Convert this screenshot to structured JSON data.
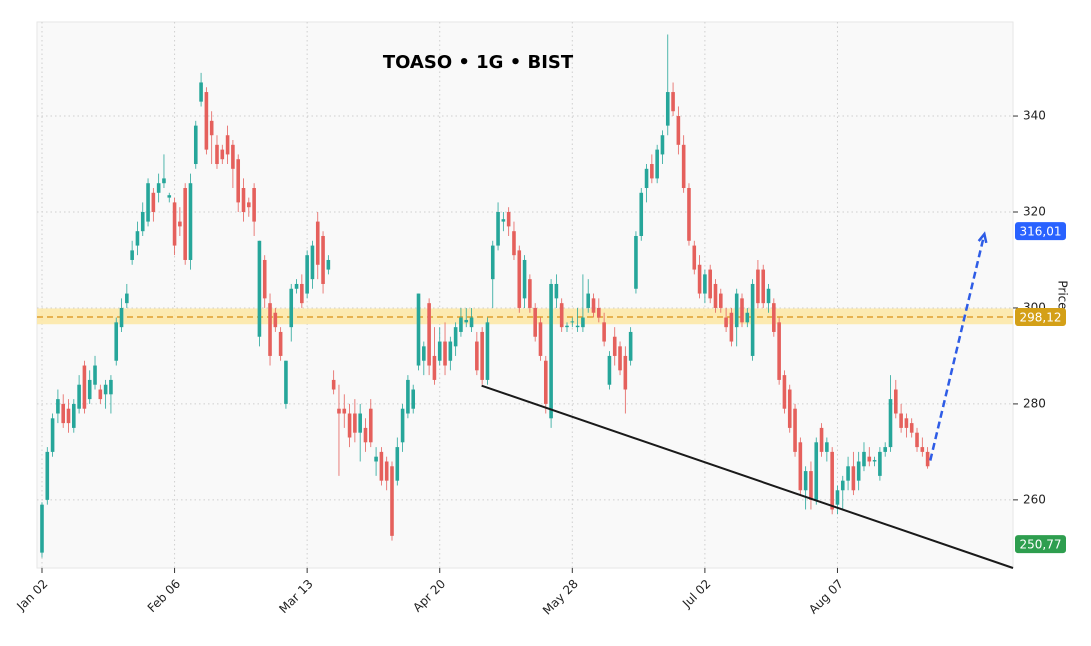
{
  "chart_data": {
    "type": "candlestick",
    "title": "TOASO • 1G • BIST",
    "ylabel": "Price",
    "ylim": [
      245.8,
      359.6
    ],
    "yticks": [
      260,
      280,
      300,
      320,
      340
    ],
    "xlim": [
      -0.94,
      183.1
    ],
    "xticks": [
      {
        "value": 0,
        "label": "Jan 02"
      },
      {
        "value": 25,
        "label": "Feb 06"
      },
      {
        "value": 50,
        "label": "Mar 13"
      },
      {
        "value": 75,
        "label": "Apr 20"
      },
      {
        "value": 100,
        "label": "May 28"
      },
      {
        "value": 125,
        "label": "Jul 02"
      },
      {
        "value": 150,
        "label": "Aug 07"
      }
    ],
    "grid": true,
    "up_color": "#26a69a",
    "down_color": "#e5605c",
    "ohlc": [
      [
        249,
        259.5,
        248,
        259
      ],
      [
        260,
        271,
        259,
        270
      ],
      [
        270,
        278,
        269,
        277
      ],
      [
        278,
        283,
        276,
        281
      ],
      [
        280,
        282,
        275,
        276
      ],
      [
        279,
        281,
        274,
        276
      ],
      [
        275,
        281,
        274,
        280
      ],
      [
        279,
        286,
        278,
        284
      ],
      [
        288,
        289,
        278,
        279
      ],
      [
        281,
        287,
        280,
        285
      ],
      [
        284,
        290,
        283,
        288
      ],
      [
        283,
        284,
        280,
        281
      ],
      [
        282,
        285,
        279,
        284
      ],
      [
        282,
        286,
        278,
        285
      ],
      [
        289,
        298,
        288,
        297
      ],
      [
        296,
        302,
        295,
        300
      ],
      [
        301,
        305,
        300,
        303
      ],
      [
        310,
        314,
        309,
        312
      ],
      [
        313,
        318,
        311,
        316
      ],
      [
        316,
        322,
        315,
        320
      ],
      [
        318,
        327,
        317,
        326
      ],
      [
        324,
        325,
        318,
        320
      ],
      [
        324,
        328,
        322,
        326
      ],
      [
        326,
        332,
        325,
        327
      ],
      [
        323,
        324,
        322,
        323.5
      ],
      [
        322,
        323,
        311,
        313
      ],
      [
        318,
        321,
        315,
        317
      ],
      [
        325,
        326,
        309,
        310
      ],
      [
        310,
        328,
        308,
        326
      ],
      [
        330,
        339,
        329,
        338
      ],
      [
        343,
        349,
        342,
        347
      ],
      [
        345,
        346,
        332,
        333
      ],
      [
        339,
        341,
        330,
        336
      ],
      [
        334,
        336,
        329,
        330
      ],
      [
        333,
        334,
        330,
        331
      ],
      [
        336,
        338,
        330,
        332
      ],
      [
        334,
        335,
        325,
        329
      ],
      [
        331,
        332,
        320,
        322
      ],
      [
        325,
        327,
        318,
        320
      ],
      [
        322,
        323,
        319,
        321
      ],
      [
        325,
        326,
        315,
        318
      ],
      [
        294,
        314,
        292,
        314
      ],
      [
        310,
        311,
        300,
        302
      ],
      [
        301,
        303,
        288,
        290
      ],
      [
        299,
        300,
        295,
        296
      ],
      [
        295,
        296,
        289,
        290
      ],
      [
        280,
        289,
        279,
        289
      ],
      [
        296,
        305,
        293,
        304
      ],
      [
        304,
        306,
        303,
        305
      ],
      [
        305,
        307,
        300,
        301
      ],
      [
        303,
        312,
        302,
        311
      ],
      [
        306,
        314,
        304,
        313
      ],
      [
        318,
        320,
        306,
        309
      ],
      [
        315,
        316,
        303,
        305
      ],
      [
        308,
        311,
        307,
        310
      ],
      [
        285,
        287,
        282,
        283
      ],
      [
        279,
        284,
        265,
        278
      ],
      [
        279,
        282,
        275,
        278
      ],
      [
        278,
        280,
        271,
        273
      ],
      [
        278,
        281,
        272,
        274
      ],
      [
        274,
        280,
        268,
        278
      ],
      [
        275,
        277,
        270,
        272
      ],
      [
        279,
        281,
        271,
        272
      ],
      [
        268,
        271,
        265,
        269
      ],
      [
        270,
        271,
        263,
        264
      ],
      [
        268,
        269,
        262,
        264
      ],
      [
        267,
        268,
        251.5,
        252.5
      ],
      [
        264,
        273,
        263,
        271
      ],
      [
        272,
        280,
        270,
        279
      ],
      [
        278,
        286,
        277,
        285
      ],
      [
        279,
        284,
        278,
        283
      ],
      [
        288,
        303,
        287,
        303
      ],
      [
        289,
        293,
        286,
        292
      ],
      [
        301,
        302,
        286,
        288
      ],
      [
        290,
        296,
        284,
        285
      ],
      [
        289,
        296,
        288,
        293
      ],
      [
        293,
        297,
        286,
        288
      ],
      [
        289,
        294,
        287,
        293
      ],
      [
        292,
        297,
        290,
        296
      ],
      [
        295,
        300,
        294,
        298
      ],
      [
        297,
        300,
        296,
        297.5
      ],
      [
        296,
        300,
        295,
        298
      ],
      [
        293,
        295,
        286,
        287
      ],
      [
        295,
        296,
        284,
        285
      ],
      [
        285,
        298,
        284,
        297
      ],
      [
        306,
        314,
        300,
        313
      ],
      [
        313,
        322,
        312,
        320
      ],
      [
        318,
        320,
        316,
        318.5
      ],
      [
        320,
        321,
        315,
        317
      ],
      [
        316,
        318,
        310,
        311
      ],
      [
        312,
        313,
        299,
        300
      ],
      [
        302,
        311,
        300,
        310
      ],
      [
        306,
        307,
        299,
        300
      ],
      [
        300,
        301,
        293,
        294
      ],
      [
        297,
        298,
        289,
        290
      ],
      [
        289,
        290,
        278,
        280
      ],
      [
        277,
        306,
        275,
        305
      ],
      [
        302,
        307,
        300,
        305
      ],
      [
        301,
        302,
        295,
        296
      ],
      [
        296,
        297,
        295,
        296.3
      ],
      [
        297,
        298,
        296,
        297.2
      ],
      [
        296,
        300,
        295,
        296.3
      ],
      [
        296,
        307,
        295,
        298
      ],
      [
        300,
        306,
        299,
        303
      ],
      [
        302,
        303,
        298,
        299
      ],
      [
        300,
        302,
        297,
        298
      ],
      [
        297,
        299,
        292,
        293
      ],
      [
        284,
        291,
        283,
        290
      ],
      [
        294,
        296,
        288,
        290
      ],
      [
        292,
        293,
        286,
        287
      ],
      [
        290,
        292,
        278,
        283
      ],
      [
        289,
        296,
        288,
        295
      ],
      [
        304,
        316,
        303,
        315
      ],
      [
        315,
        325,
        314,
        324
      ],
      [
        325,
        330,
        322,
        329
      ],
      [
        330,
        332,
        326,
        327
      ],
      [
        327,
        334,
        326,
        333
      ],
      [
        332,
        337,
        330,
        336
      ],
      [
        338,
        357,
        336,
        345
      ],
      [
        345,
        347,
        340,
        341
      ],
      [
        340,
        342,
        332,
        334
      ],
      [
        334,
        336,
        324,
        325
      ],
      [
        325,
        326,
        313,
        314
      ],
      [
        313,
        314,
        307,
        308
      ],
      [
        309,
        311,
        302,
        303
      ],
      [
        303,
        308,
        301,
        307
      ],
      [
        308,
        309,
        301,
        302
      ],
      [
        305,
        306,
        299,
        300
      ],
      [
        303,
        304,
        299,
        300
      ],
      [
        298,
        300,
        295,
        296
      ],
      [
        299,
        300,
        292,
        293
      ],
      [
        296,
        304,
        292,
        303
      ],
      [
        302,
        303,
        296,
        297
      ],
      [
        297,
        300,
        296,
        299
      ],
      [
        290,
        306,
        289,
        305
      ],
      [
        308,
        310,
        300,
        301
      ],
      [
        308,
        309,
        300,
        301
      ],
      [
        301,
        305,
        299,
        304
      ],
      [
        301,
        302,
        294,
        295
      ],
      [
        297,
        298,
        284,
        285
      ],
      [
        286,
        287,
        278,
        279
      ],
      [
        283,
        284,
        274,
        275
      ],
      [
        279,
        280,
        269,
        270
      ],
      [
        272,
        273,
        261,
        262
      ],
      [
        262,
        267,
        258,
        266
      ],
      [
        266,
        268,
        258,
        260
      ],
      [
        260,
        273,
        259,
        272
      ],
      [
        275,
        276,
        269,
        270
      ],
      [
        270,
        273,
        268,
        272
      ],
      [
        270,
        271,
        257,
        258
      ],
      [
        259,
        263,
        257,
        262
      ],
      [
        262,
        265,
        258,
        264
      ],
      [
        264,
        269,
        262,
        267
      ],
      [
        267,
        270,
        261,
        262
      ],
      [
        264,
        270,
        262,
        268
      ],
      [
        267,
        272,
        266,
        270
      ],
      [
        269,
        271,
        267,
        268
      ],
      [
        268,
        269,
        267,
        268.3
      ],
      [
        265,
        271,
        264,
        270
      ],
      [
        270,
        272,
        269,
        271
      ],
      [
        271,
        286,
        270,
        281
      ],
      [
        283,
        285,
        277,
        278
      ],
      [
        278,
        280,
        274,
        275
      ],
      [
        277,
        278,
        273,
        275
      ],
      [
        276,
        277,
        273,
        274
      ],
      [
        274,
        275,
        270,
        271
      ],
      [
        271,
        273,
        269,
        270
      ],
      [
        270,
        271,
        266.5,
        267
      ]
    ],
    "band": [
      296.6,
      299.9
    ],
    "band_color": "#fde7a4",
    "level": {
      "value": 298.12,
      "color": "#e0a030"
    },
    "trendline": {
      "x": [
        82.9,
        183.1
      ],
      "y": [
        283.8,
        245.8
      ],
      "color": "#1a1a1a"
    },
    "projection": {
      "x": [
        167.5,
        177.7
      ],
      "y": [
        268.2,
        315.4
      ],
      "color": "#2e5ce6"
    },
    "price_labels": [
      {
        "value": 316.01,
        "label": "316,01",
        "color": "#2962ff"
      },
      {
        "value": 298.12,
        "label": "298,12",
        "color": "#d4a017"
      },
      {
        "value": 250.77,
        "label": "250,77",
        "color": "#2e9e4f"
      }
    ]
  }
}
